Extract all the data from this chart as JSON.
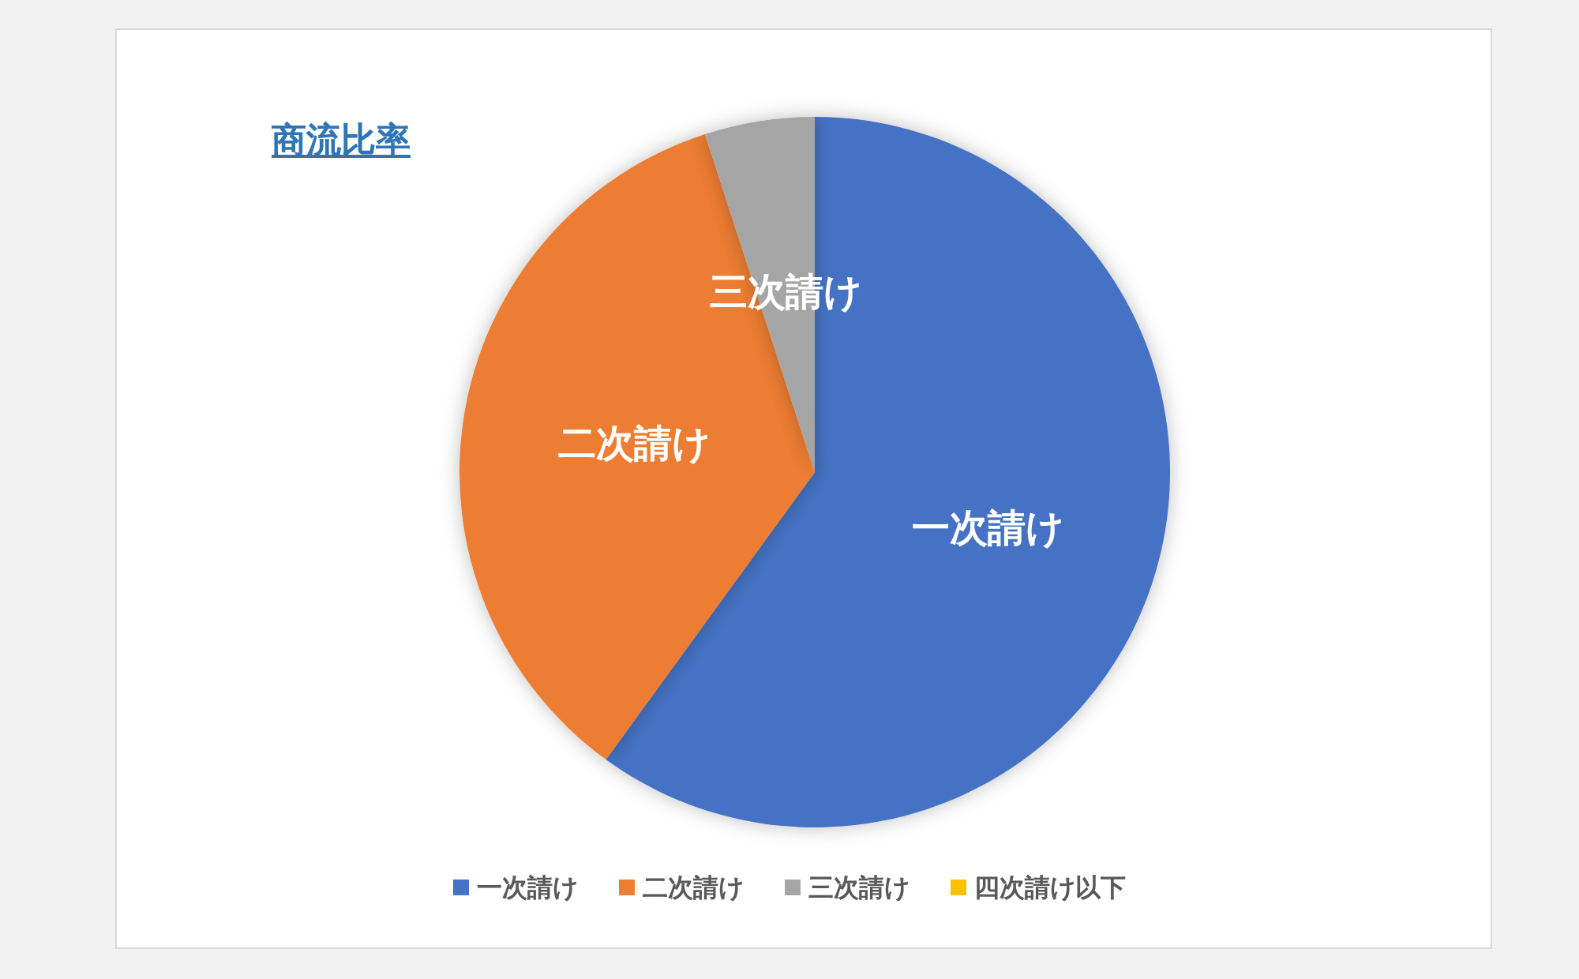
{
  "chart_data": {
    "type": "pie",
    "title": "商流比率",
    "categories": [
      "一次請け",
      "二次請け",
      "三次請け",
      "四次請け以下"
    ],
    "values": [
      60,
      35,
      5,
      0
    ],
    "colors": [
      "#4472c4",
      "#ed7d31",
      "#a5a5a5",
      "#ffc000"
    ],
    "legend": "bottom"
  }
}
